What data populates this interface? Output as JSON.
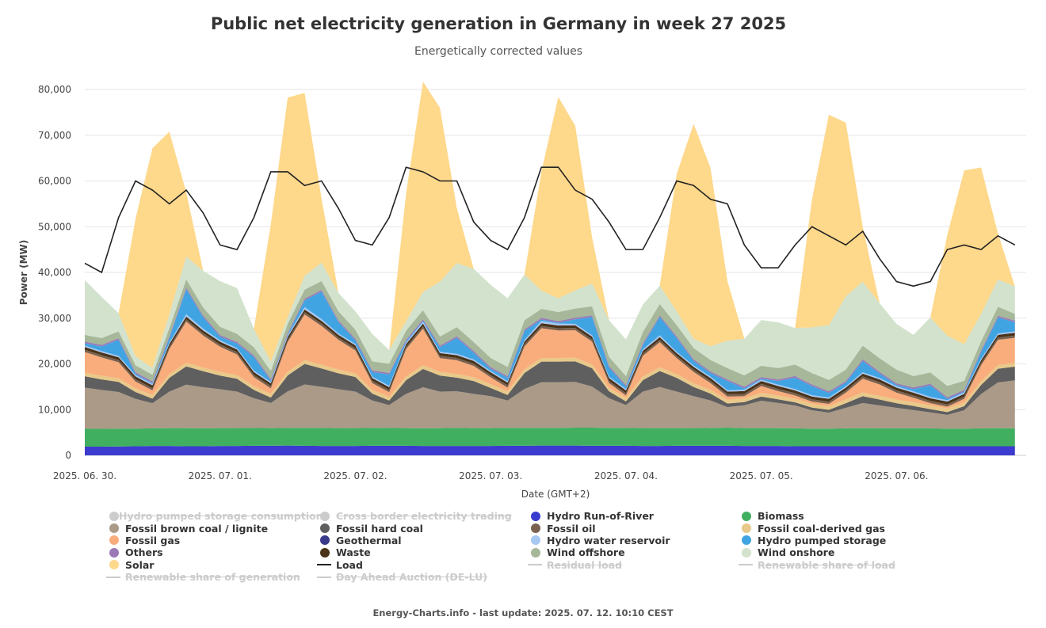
{
  "chart_data": {
    "type": "area",
    "title": "Public net electricity generation in Germany in week 27 2025",
    "subtitle": "Energetically corrected values",
    "xlabel": "Date (GMT+2)",
    "ylabel": "Power (MW)",
    "ylim": [
      0,
      80000
    ],
    "yticks": [
      0,
      10000,
      20000,
      30000,
      40000,
      50000,
      60000,
      70000,
      80000
    ],
    "ytick_labels": [
      "0",
      "10,000",
      "20,000",
      "30,000",
      "40,000",
      "50,000",
      "60,000",
      "70,000",
      "80,000"
    ],
    "xtick_labels": [
      "2025. 06. 30.",
      "2025. 07. 01.",
      "2025. 07. 02.",
      "2025. 07. 03.",
      "2025. 07. 04.",
      "2025. 07. 05.",
      "2025. 07. 06."
    ],
    "x_hours": [
      0,
      3,
      6,
      9,
      12,
      15,
      18,
      21,
      24,
      27,
      30,
      33,
      36,
      39,
      42,
      45,
      48,
      51,
      54,
      57,
      60,
      63,
      66,
      69,
      72,
      75,
      78,
      81,
      84,
      87,
      90,
      93,
      96,
      99,
      102,
      105,
      108,
      111,
      114,
      117,
      120,
      123,
      126,
      129,
      132,
      135,
      138,
      141,
      144,
      147,
      150,
      153,
      156,
      159,
      162,
      165
    ],
    "grid": true,
    "legend_position": "bottom",
    "series": [
      {
        "name": "Hydro Run-of-River",
        "color": "#3b3bd0",
        "values": [
          1900,
          1900,
          1950,
          2000,
          2050,
          2050,
          2000,
          2000,
          2050,
          2050,
          2100,
          2100,
          2150,
          2100,
          2050,
          2050,
          2050,
          2100,
          2100,
          2100,
          2050,
          2050,
          2050,
          2050,
          2050,
          2100,
          2100,
          2150,
          2150,
          2150,
          2100,
          2100,
          2100,
          2050,
          2050,
          2100,
          2100,
          2100,
          2100,
          2050,
          2050,
          2050,
          2000,
          2000,
          2000,
          2000,
          2000,
          2000,
          2000,
          2000,
          2000,
          2000,
          2000,
          2000,
          2000,
          2000
        ]
      },
      {
        "name": "Biomass",
        "color": "#40b060",
        "values": [
          3900,
          3900,
          3900,
          3850,
          3850,
          3900,
          3950,
          3900,
          3900,
          3900,
          3900,
          3850,
          3850,
          3900,
          3950,
          3900,
          3900,
          3900,
          3900,
          3850,
          3850,
          3900,
          3950,
          3900,
          3900,
          3900,
          3900,
          3850,
          3850,
          3900,
          3950,
          3900,
          3900,
          3900,
          3900,
          3850,
          3850,
          3900,
          3950,
          3900,
          3900,
          3900,
          3900,
          3850,
          3850,
          3900,
          3950,
          3900,
          3900,
          3900,
          3900,
          3850,
          3850,
          3900,
          3950,
          3900
        ]
      },
      {
        "name": "Fossil brown coal / lignite",
        "color": "#ab9a88",
        "values": [
          9000,
          8500,
          8000,
          6500,
          5500,
          8000,
          9500,
          9000,
          8500,
          8000,
          6500,
          5500,
          8000,
          9500,
          9000,
          8500,
          8000,
          6000,
          5000,
          7500,
          9000,
          8000,
          8000,
          7500,
          7000,
          6000,
          8500,
          10000,
          10000,
          10000,
          9000,
          6500,
          5000,
          8000,
          9000,
          8000,
          7000,
          6000,
          4500,
          5000,
          6000,
          5500,
          5000,
          4000,
          3500,
          4500,
          5500,
          5000,
          4500,
          4000,
          3500,
          3000,
          4000,
          7500,
          10000,
          10500
        ]
      },
      {
        "name": "Fossil hard coal",
        "color": "#5f5f5f",
        "values": [
          2500,
          2300,
          2200,
          1500,
          1000,
          3000,
          4000,
          3500,
          3000,
          2800,
          1800,
          1200,
          3500,
          4500,
          4000,
          3500,
          3200,
          1500,
          1000,
          3000,
          4000,
          3500,
          3000,
          2800,
          1800,
          1200,
          3500,
          4500,
          4500,
          4500,
          4000,
          1500,
          800,
          2500,
          3500,
          3000,
          2000,
          1500,
          800,
          700,
          900,
          800,
          700,
          600,
          600,
          1000,
          1500,
          1300,
          1000,
          900,
          700,
          600,
          900,
          2000,
          3000,
          3000
        ]
      },
      {
        "name": "Fossil coal-derived gas",
        "color": "#e8c98a",
        "values": [
          800,
          800,
          800,
          800,
          800,
          800,
          800,
          800,
          800,
          800,
          800,
          800,
          800,
          800,
          800,
          800,
          800,
          800,
          800,
          800,
          800,
          800,
          800,
          800,
          800,
          800,
          800,
          800,
          800,
          800,
          800,
          800,
          800,
          800,
          800,
          800,
          800,
          800,
          800,
          800,
          800,
          800,
          800,
          800,
          800,
          800,
          800,
          800,
          800,
          800,
          800,
          800,
          800,
          800,
          800,
          800
        ]
      },
      {
        "name": "Fossil gas",
        "color": "#f9ad7c",
        "values": [
          4500,
          4000,
          3500,
          1500,
          1000,
          5500,
          9000,
          7000,
          5500,
          4500,
          2000,
          1200,
          6500,
          10000,
          8500,
          6500,
          5000,
          1500,
          1000,
          6000,
          8000,
          3000,
          3000,
          2500,
          1500,
          800,
          5000,
          6500,
          6000,
          6000,
          5000,
          1000,
          500,
          4500,
          5500,
          3500,
          2500,
          1500,
          700,
          500,
          1500,
          1000,
          700,
          500,
          500,
          1500,
          3000,
          2500,
          1500,
          1000,
          500,
          400,
          800,
          3500,
          5500,
          5500
        ]
      },
      {
        "name": "Fossil oil",
        "color": "#7a6250",
        "values": [
          500,
          500,
          500,
          500,
          500,
          500,
          500,
          500,
          500,
          500,
          500,
          500,
          500,
          500,
          500,
          500,
          500,
          500,
          500,
          500,
          500,
          500,
          500,
          500,
          500,
          500,
          500,
          500,
          500,
          500,
          500,
          500,
          500,
          500,
          500,
          500,
          500,
          500,
          500,
          500,
          500,
          500,
          500,
          500,
          500,
          500,
          500,
          500,
          500,
          500,
          500,
          500,
          500,
          500,
          500,
          500
        ]
      },
      {
        "name": "Waste",
        "color": "#4a3318",
        "values": [
          600,
          600,
          600,
          600,
          600,
          600,
          600,
          600,
          600,
          600,
          600,
          600,
          600,
          600,
          600,
          600,
          600,
          600,
          600,
          600,
          600,
          600,
          600,
          600,
          600,
          600,
          600,
          600,
          600,
          600,
          600,
          600,
          600,
          600,
          600,
          600,
          600,
          600,
          600,
          600,
          600,
          600,
          600,
          600,
          600,
          600,
          600,
          600,
          600,
          600,
          600,
          600,
          600,
          600,
          600,
          600
        ]
      },
      {
        "name": "Hydro water reservoir",
        "color": "#a8c8f4",
        "values": [
          300,
          300,
          300,
          300,
          300,
          300,
          500,
          400,
          300,
          300,
          300,
          300,
          300,
          500,
          400,
          300,
          300,
          300,
          300,
          300,
          400,
          300,
          300,
          300,
          300,
          300,
          300,
          500,
          400,
          300,
          300,
          300,
          300,
          300,
          400,
          300,
          300,
          300,
          300,
          300,
          300,
          300,
          300,
          300,
          300,
          300,
          300,
          300,
          300,
          300,
          300,
          300,
          300,
          300,
          300,
          300
        ]
      },
      {
        "name": "Hydro pumped storage",
        "color": "#41a4e2",
        "values": [
          500,
          1000,
          3500,
          300,
          200,
          1000,
          5500,
          2500,
          800,
          1000,
          3000,
          300,
          200,
          1500,
          6000,
          2500,
          800,
          1000,
          2500,
          300,
          200,
          1000,
          3500,
          1500,
          500,
          800,
          2000,
          300,
          200,
          1000,
          4000,
          2000,
          500,
          1000,
          4000,
          3000,
          1000,
          800,
          2000,
          300,
          200,
          800,
          2500,
          2000,
          1000,
          800,
          2500,
          1000,
          300,
          500,
          2500,
          300,
          200,
          1500,
          3500,
          2000
        ]
      },
      {
        "name": "Others",
        "color": "#9b78b8",
        "values": [
          300,
          300,
          300,
          300,
          300,
          300,
          300,
          300,
          300,
          300,
          300,
          300,
          300,
          300,
          300,
          300,
          300,
          300,
          300,
          300,
          300,
          300,
          300,
          300,
          300,
          300,
          300,
          300,
          300,
          300,
          300,
          300,
          300,
          300,
          300,
          300,
          300,
          300,
          300,
          300,
          300,
          300,
          300,
          300,
          300,
          300,
          300,
          300,
          300,
          300,
          300,
          300,
          300,
          300,
          300,
          300
        ]
      },
      {
        "name": "Geothermal",
        "color": "#3a3a8c",
        "values": [
          40,
          40,
          40,
          40,
          40,
          40,
          40,
          40,
          40,
          40,
          40,
          40,
          40,
          40,
          40,
          40,
          40,
          40,
          40,
          40,
          40,
          40,
          40,
          40,
          40,
          40,
          40,
          40,
          40,
          40,
          40,
          40,
          40,
          40,
          40,
          40,
          40,
          40,
          40,
          40,
          40,
          40,
          40,
          40,
          40,
          40,
          40,
          40,
          40,
          40,
          40,
          40,
          40,
          40,
          40,
          40
        ]
      },
      {
        "name": "Wind offshore",
        "color": "#a7b79a",
        "values": [
          1500,
          1500,
          1500,
          1500,
          1500,
          1800,
          1800,
          1800,
          1800,
          1800,
          1800,
          1800,
          2000,
          2000,
          2000,
          2000,
          2000,
          2000,
          2000,
          2000,
          2000,
          2000,
          2000,
          2000,
          2000,
          2000,
          2000,
          2000,
          2000,
          2000,
          2000,
          2000,
          2000,
          2500,
          2500,
          2500,
          2500,
          2500,
          2500,
          2500,
          2500,
          2500,
          2500,
          2500,
          2500,
          2500,
          3000,
          3000,
          3000,
          2500,
          2500,
          2500,
          2000,
          2000,
          2000,
          1500
        ]
      },
      {
        "name": "Wind onshore",
        "color": "#d2e2cc",
        "values": [
          12000,
          9000,
          4000,
          2000,
          1500,
          3000,
          5000,
          8000,
          10000,
          10000,
          4000,
          2000,
          1500,
          3000,
          4000,
          4000,
          4000,
          6000,
          3000,
          2000,
          4000,
          12000,
          14000,
          16000,
          16000,
          15000,
          10000,
          4000,
          3000,
          4000,
          5000,
          8000,
          8000,
          6000,
          4000,
          3000,
          2000,
          3000,
          6000,
          8000,
          10000,
          10000,
          8000,
          10000,
          12000,
          16000,
          14000,
          12000,
          10000,
          9000,
          12000,
          11000,
          8000,
          6000,
          6000,
          6000
        ]
      },
      {
        "name": "Solar",
        "color": "#fed88b",
        "values": [
          0,
          0,
          0,
          30000,
          48000,
          40000,
          14000,
          0,
          0,
          0,
          0,
          30000,
          48000,
          40000,
          14000,
          0,
          0,
          0,
          0,
          28000,
          46000,
          38000,
          12000,
          0,
          0,
          0,
          0,
          26000,
          44000,
          36000,
          10000,
          0,
          0,
          0,
          0,
          30000,
          47000,
          39000,
          13000,
          0,
          0,
          0,
          0,
          28000,
          46000,
          38000,
          12000,
          0,
          0,
          0,
          0,
          22000,
          38000,
          32000,
          10000,
          0
        ]
      },
      {
        "name": "Hydro pumped storage consumption",
        "hidden": true,
        "color": "#cccccc"
      },
      {
        "name": "Cross border electricity trading",
        "hidden": true,
        "color": "#cccccc"
      },
      {
        "name": "Load",
        "color": "#222222",
        "type": "line",
        "values": [
          42000,
          40000,
          52000,
          60000,
          58000,
          55000,
          58000,
          53000,
          46000,
          45000,
          52000,
          62000,
          62000,
          59000,
          60000,
          54000,
          47000,
          46000,
          52000,
          63000,
          62000,
          60000,
          60000,
          51000,
          47000,
          45000,
          52000,
          63000,
          63000,
          58000,
          56000,
          51000,
          45000,
          45000,
          52000,
          60000,
          59000,
          56000,
          55000,
          46000,
          41000,
          41000,
          46000,
          50000,
          48000,
          46000,
          49000,
          43000,
          38000,
          37000,
          38000,
          45000,
          46000,
          45000,
          48000,
          46000
        ]
      },
      {
        "name": "Residual load",
        "hidden": true,
        "type": "line",
        "color": "#cccccc"
      },
      {
        "name": "Renewable share of load",
        "hidden": true,
        "type": "line",
        "color": "#cccccc"
      },
      {
        "name": "Renewable share of generation",
        "hidden": true,
        "type": "line",
        "color": "#cccccc"
      },
      {
        "name": "Day Ahead Auction (DE-LU)",
        "hidden": true,
        "type": "line",
        "color": "#cccccc"
      }
    ],
    "legend_order": [
      "Hydro pumped storage consumption",
      "Cross border electricity trading",
      "Hydro Run-of-River",
      "Biomass",
      "Fossil brown coal / lignite",
      "Fossil hard coal",
      "Fossil oil",
      "Fossil coal-derived gas",
      "Fossil gas",
      "Geothermal",
      "Hydro water reservoir",
      "Hydro pumped storage",
      "Others",
      "Waste",
      "Wind offshore",
      "Wind onshore",
      "Solar",
      "Load",
      "Residual load",
      "Renewable share of load",
      "Renewable share of generation",
      "Day Ahead Auction (DE-LU)"
    ]
  },
  "footer": "Energy-Charts.info - last update: 2025. 07. 12. 10:10 CEST"
}
